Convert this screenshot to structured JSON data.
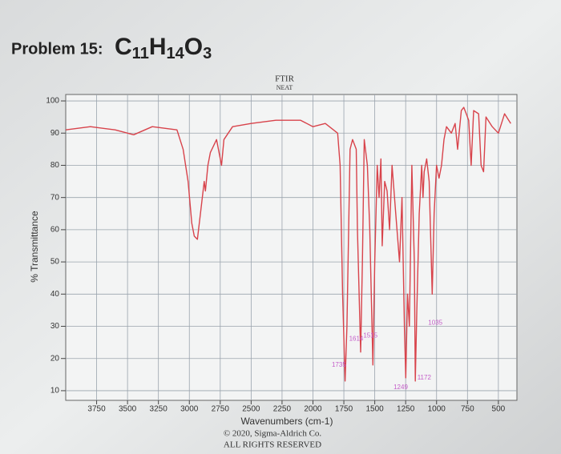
{
  "chart_data": {
    "type": "line",
    "title": "Problem 15:",
    "formula": [
      "C",
      "11",
      "H",
      "14",
      "O",
      "3"
    ],
    "subtitle": "FTIR",
    "subtitle2": "NEAT",
    "x_label": "Wavenumbers (cm-1)",
    "y_label": "% Transmittance",
    "footer": [
      "© 2020, Sigma-Aldrich Co.",
      "ALL RIGHTS RESERVED"
    ],
    "xlim": [
      4000,
      350
    ],
    "ylim": [
      7,
      102
    ],
    "xticks": [
      3750,
      3500,
      3250,
      3000,
      2750,
      2500,
      2250,
      2000,
      1750,
      1500,
      1250,
      1000,
      750,
      500
    ],
    "yticks": [
      10,
      20,
      30,
      40,
      50,
      60,
      70,
      80,
      90,
      100
    ],
    "grid": true,
    "series": [
      {
        "name": "spectrum",
        "color": "#d8434b",
        "x": [
          4000,
          3800,
          3600,
          3450,
          3300,
          3100,
          3050,
          3010,
          2980,
          2960,
          2935,
          2910,
          2880,
          2870,
          2850,
          2830,
          2780,
          2740,
          2720,
          2650,
          2500,
          2300,
          2100,
          2000,
          1900,
          1800,
          1780,
          1760,
          1740,
          1725,
          1700,
          1680,
          1650,
          1640,
          1614,
          1600,
          1585,
          1560,
          1540,
          1515,
          1500,
          1480,
          1465,
          1450,
          1440,
          1420,
          1400,
          1380,
          1360,
          1330,
          1300,
          1280,
          1260,
          1249,
          1235,
          1220,
          1200,
          1180,
          1172,
          1160,
          1140,
          1120,
          1110,
          1100,
          1080,
          1060,
          1035,
          1020,
          1000,
          980,
          960,
          940,
          920,
          880,
          850,
          830,
          800,
          780,
          760,
          740,
          720,
          700,
          660,
          640,
          620,
          600,
          550,
          500,
          450,
          400
        ],
        "values": [
          91,
          92,
          91,
          89.5,
          92,
          91,
          85,
          75,
          62,
          58,
          57,
          65,
          75,
          72,
          80,
          84,
          88,
          80,
          88,
          92,
          93,
          94,
          94,
          92,
          93,
          90,
          80,
          40,
          13,
          30,
          85,
          88,
          85,
          60,
          22,
          50,
          88,
          80,
          60,
          18,
          50,
          80,
          70,
          82,
          55,
          75,
          72,
          60,
          80,
          65,
          50,
          70,
          30,
          14,
          40,
          30,
          80,
          50,
          13,
          35,
          65,
          80,
          70,
          78,
          82,
          75,
          40,
          65,
          80,
          76,
          80,
          88,
          92,
          90,
          93,
          85,
          97,
          98,
          96,
          94,
          80,
          97,
          96,
          80,
          78,
          95,
          92,
          90,
          96,
          93
        ]
      }
    ],
    "annotations": [
      {
        "text": "1735",
        "x": 1790,
        "y": 18
      },
      {
        "text": "1614",
        "x": 1650,
        "y": 26
      },
      {
        "text": "1515",
        "x": 1535,
        "y": 27
      },
      {
        "text": "1249",
        "x": 1290,
        "y": 11
      },
      {
        "text": "1172",
        "x": 1100,
        "y": 14
      },
      {
        "text": "1035",
        "x": 1010,
        "y": 31
      }
    ]
  }
}
